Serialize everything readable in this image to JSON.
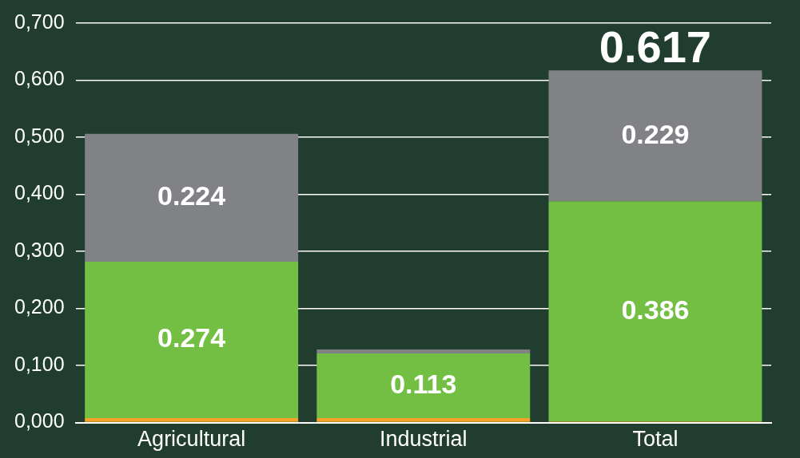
{
  "chart_data": {
    "type": "bar",
    "stacked": true,
    "categories": [
      "Agricultural",
      "Industrial",
      "Total"
    ],
    "series": [
      {
        "color": "#f5a12a",
        "values": [
          0.008,
          0.008,
          0.002
        ]
      },
      {
        "color": "#72bf44",
        "values": [
          0.274,
          0.113,
          0.386
        ],
        "value_labels": [
          "0.274",
          "0.113",
          "0.386"
        ]
      },
      {
        "color": "#808285",
        "values": [
          0.224,
          0.007,
          0.229
        ],
        "value_labels": [
          "0.224",
          null,
          "0.229"
        ]
      }
    ],
    "totals": [
      null,
      null,
      "0.617"
    ],
    "ylim": [
      0,
      0.7
    ],
    "yticks": [
      {
        "value": 0,
        "label": "0,000"
      },
      {
        "value": 0.1,
        "label": "0,100"
      },
      {
        "value": 0.2,
        "label": "0,200"
      },
      {
        "value": 0.3,
        "label": "0,300"
      },
      {
        "value": 0.4,
        "label": "0,400"
      },
      {
        "value": 0.5,
        "label": "0,500"
      },
      {
        "value": 0.6,
        "label": "0,600"
      },
      {
        "value": 0.7,
        "label": "0,700"
      }
    ],
    "grid": "y",
    "legend": false
  }
}
